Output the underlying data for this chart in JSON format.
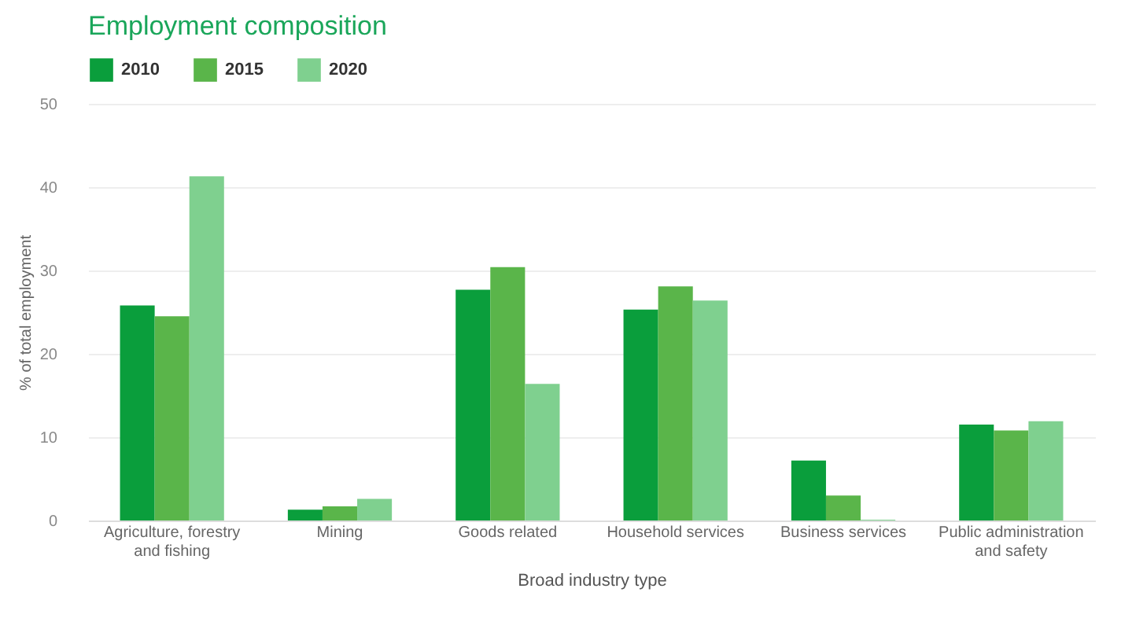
{
  "chart_data": {
    "type": "bar",
    "title": "Employment composition",
    "xlabel": "Broad industry type",
    "ylabel": "% of total employment",
    "categories": [
      "Agriculture, forestry and fishing",
      "Mining",
      "Goods related",
      "Household services",
      "Business services",
      "Public administration and safety"
    ],
    "series": [
      {
        "name": "2010",
        "color": "#0a9e3c",
        "values": [
          25.8,
          1.3,
          27.7,
          25.3,
          7.2,
          11.5
        ]
      },
      {
        "name": "2015",
        "color": "#5ab54a",
        "values": [
          24.5,
          1.7,
          30.4,
          28.1,
          3.0,
          10.8
        ]
      },
      {
        "name": "2020",
        "color": "#7fd08f",
        "values": [
          41.3,
          2.6,
          16.4,
          26.4,
          0.1,
          11.9
        ]
      }
    ],
    "ylim": [
      0,
      50
    ],
    "yticks": [
      0,
      10,
      20,
      30,
      40,
      50
    ],
    "grid": "y",
    "legend": "top left"
  }
}
